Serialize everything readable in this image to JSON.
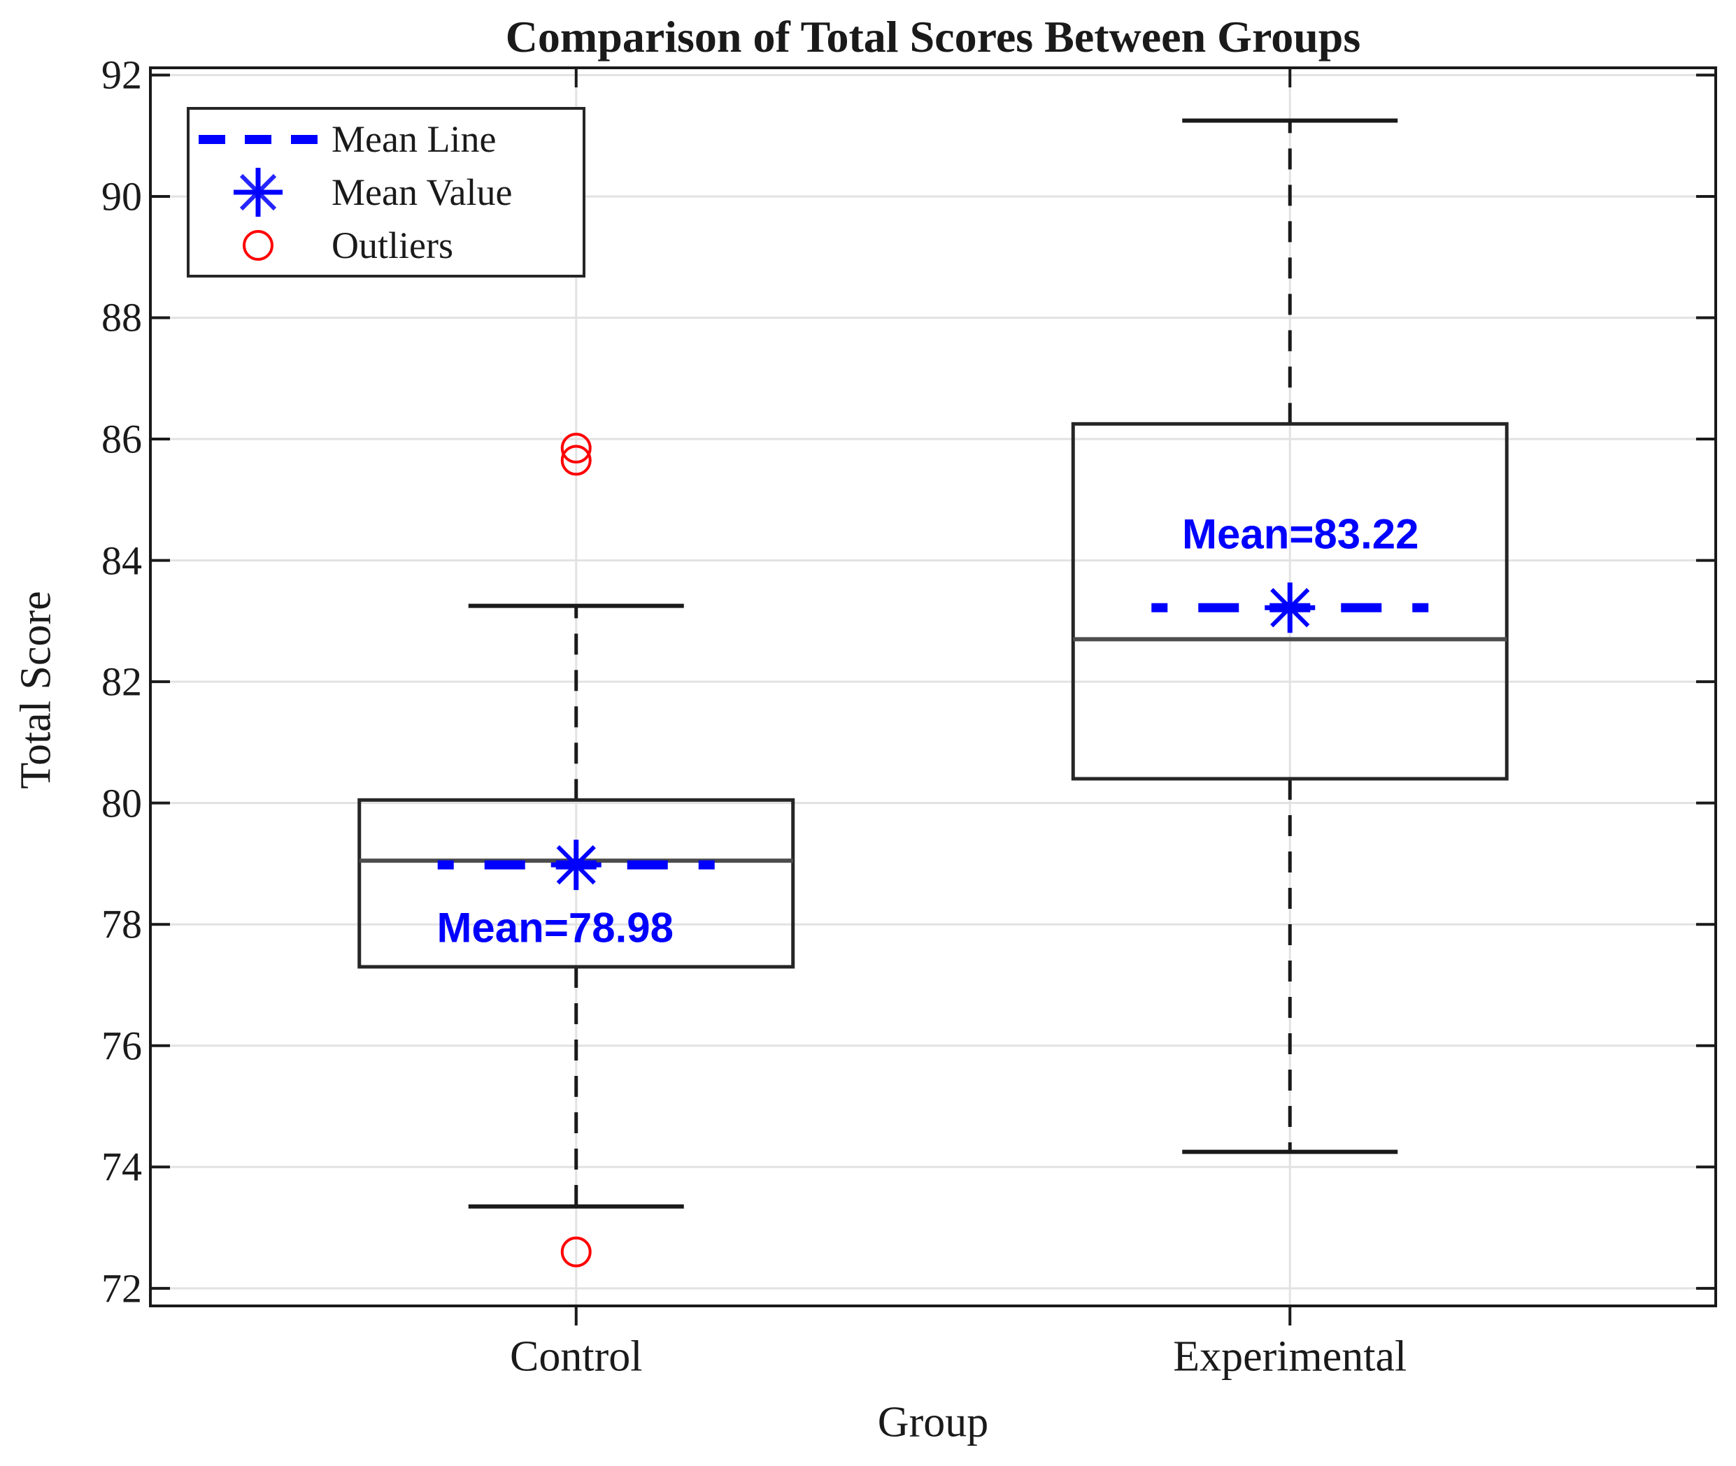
{
  "title": "Comparison of Total Scores Between Groups",
  "axes": {
    "xlabel": "Group",
    "ylabel": "Total Score",
    "yticks": [
      72,
      74,
      76,
      78,
      80,
      82,
      84,
      86,
      88,
      90,
      92
    ],
    "xticks": [
      "Control",
      "Experimental"
    ]
  },
  "legend": {
    "items": [
      {
        "label": "Mean Line",
        "marker": "dashed-line-swatch"
      },
      {
        "label": "Mean Value",
        "marker": "asterisk-marker"
      },
      {
        "label": "Outliers",
        "marker": "circle-marker"
      }
    ]
  },
  "colors": {
    "mean_blue": "#0000ff",
    "outlier_red": "#ff0000",
    "box_stroke": "#262626",
    "median_gray": "#4d4d4d",
    "whisker_black": "#1a1a1a",
    "grid_gray": "#e2e2e2",
    "axis_black": "#1a1a1a"
  },
  "chart_data": {
    "type": "boxplot",
    "title": "Comparison of Total Scores Between Groups",
    "xlabel": "Group",
    "ylabel": "Total Score",
    "ylim": [
      71.71,
      92.12
    ],
    "yticks": [
      72,
      74,
      76,
      78,
      80,
      82,
      84,
      86,
      88,
      90,
      92
    ],
    "grid": true,
    "legend_position": "northwest",
    "groups": [
      {
        "label": "Control",
        "q1": 77.3,
        "median": 79.05,
        "q3": 80.05,
        "whisker_low": 73.35,
        "whisker_high": 83.25,
        "mean": 78.98,
        "mean_label": "Mean=78.98",
        "mean_label_position": "below",
        "outliers": [
          85.85,
          85.65,
          72.6
        ]
      },
      {
        "label": "Experimental",
        "q1": 80.4,
        "median": 82.7,
        "q3": 86.25,
        "whisker_low": 74.25,
        "whisker_high": 91.25,
        "mean": 83.22,
        "mean_label": "Mean=83.22",
        "mean_label_position": "above",
        "outliers": []
      }
    ]
  }
}
